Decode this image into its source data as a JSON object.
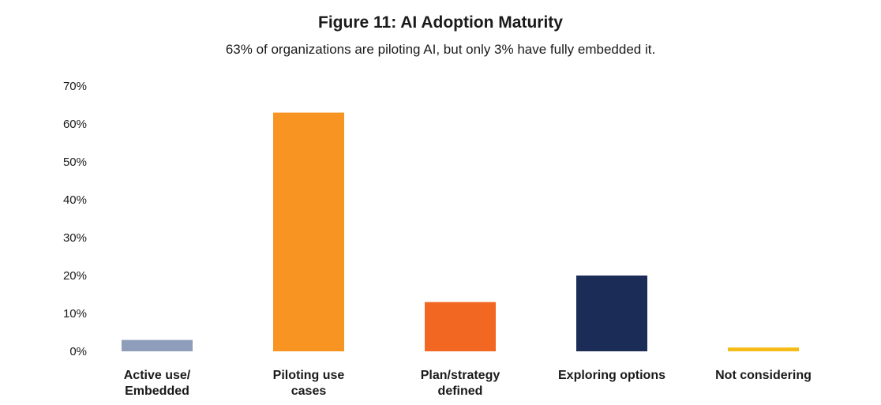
{
  "chart_data": {
    "type": "bar",
    "title": "Figure 11: AI Adoption Maturity",
    "subtitle": "63% of organizations are piloting AI, but only 3% have fully embedded it.",
    "xlabel": "",
    "ylabel": "",
    "categories": [
      [
        "Active use/",
        "Embedded"
      ],
      [
        "Piloting use",
        "cases"
      ],
      [
        "Plan/strategy",
        "defined"
      ],
      [
        "Exploring options"
      ],
      [
        "Not considering"
      ]
    ],
    "values": [
      3,
      63,
      13,
      20,
      1
    ],
    "colors": [
      "#8e9db9",
      "#f79422",
      "#f26722",
      "#1b2d56",
      "#f5bb16"
    ],
    "ylim": [
      0,
      70
    ],
    "yticks": [
      0,
      10,
      20,
      30,
      40,
      50,
      60,
      70
    ],
    "ytick_labels": [
      "0%",
      "10%",
      "20%",
      "30%",
      "40%",
      "50%",
      "60%",
      "70%"
    ],
    "grid": false,
    "legend": "none"
  }
}
